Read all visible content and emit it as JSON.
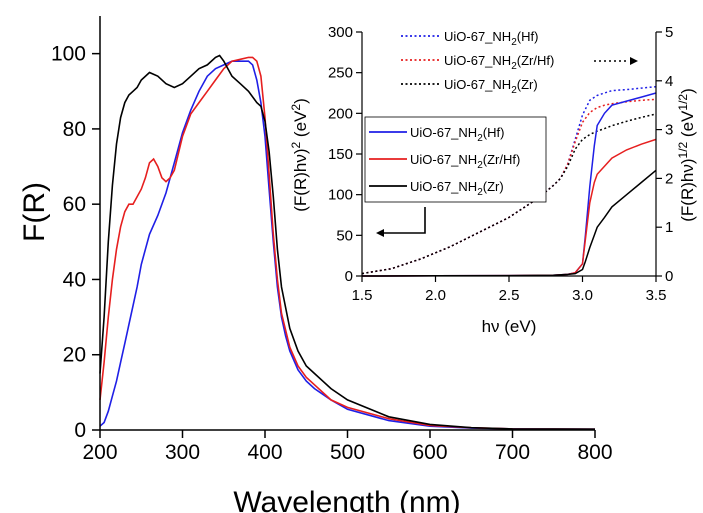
{
  "chart_data": [
    {
      "type": "line",
      "xlabel": "Wavelength (nm)",
      "ylabel": "F(R)",
      "xlim": [
        200,
        800
      ],
      "ylim": [
        0,
        110
      ],
      "xticks": [
        "200",
        "300",
        "400",
        "500",
        "600",
        "700",
        "800"
      ],
      "yticks": [
        "0",
        "20",
        "40",
        "60",
        "80",
        "100"
      ],
      "legend": "inset-left",
      "series": [
        {
          "name": "UiO-67_NH2(Hf)",
          "label_main": "UiO-67_NH",
          "label_sub": "2",
          "label_tail": "(Hf)",
          "color": "#1f1fe6",
          "style": "solid",
          "x": [
            200,
            205,
            210,
            215,
            220,
            225,
            230,
            235,
            240,
            245,
            250,
            255,
            260,
            270,
            280,
            290,
            300,
            310,
            320,
            330,
            340,
            350,
            360,
            370,
            380,
            385,
            390,
            395,
            400,
            405,
            410,
            415,
            420,
            425,
            430,
            440,
            450,
            460,
            480,
            500,
            550,
            600,
            650,
            700,
            800
          ],
          "y": [
            1,
            2,
            5,
            9,
            13,
            18,
            23,
            28,
            33,
            38,
            44,
            48,
            52,
            57,
            63,
            71,
            79,
            85,
            90,
            94,
            96,
            97,
            98,
            98,
            98,
            97,
            93,
            87,
            78,
            64,
            50,
            38,
            30,
            25,
            21,
            16,
            13,
            11,
            8,
            5.5,
            2.5,
            1,
            0.5,
            0.3,
            0.2
          ]
        },
        {
          "name": "UiO-67_NH2(Zr/Hf)",
          "label_main": "UiO-67_NH",
          "label_sub": "2",
          "label_tail": "(Zr/Hf)",
          "color": "#e61f1f",
          "style": "solid",
          "x": [
            200,
            205,
            210,
            215,
            220,
            225,
            230,
            235,
            240,
            245,
            250,
            255,
            260,
            265,
            270,
            275,
            280,
            285,
            290,
            300,
            310,
            320,
            330,
            340,
            350,
            360,
            370,
            380,
            385,
            390,
            395,
            400,
            405,
            410,
            415,
            420,
            430,
            440,
            450,
            460,
            480,
            500,
            550,
            600,
            650,
            700,
            800
          ],
          "y": [
            8,
            18,
            30,
            40,
            48,
            54,
            58,
            60,
            60,
            62,
            64,
            67,
            71,
            72,
            70,
            67,
            66,
            67,
            69,
            78,
            84,
            87,
            90,
            93,
            96,
            98,
            98.5,
            99,
            99,
            98,
            94,
            83,
            68,
            52,
            40,
            31,
            22,
            17,
            14,
            12,
            8,
            6,
            3,
            1.2,
            0.6,
            0.3,
            0.2
          ]
        },
        {
          "name": "UiO-67_NH2(Zr)",
          "label_main": "UiO-67_NH",
          "label_sub": "2",
          "label_tail": "(Zr)",
          "color": "#000000",
          "style": "solid",
          "x": [
            200,
            205,
            210,
            215,
            220,
            225,
            230,
            235,
            240,
            245,
            250,
            260,
            270,
            280,
            290,
            300,
            310,
            320,
            330,
            340,
            345,
            350,
            360,
            370,
            380,
            390,
            395,
            400,
            405,
            410,
            415,
            420,
            430,
            440,
            450,
            460,
            480,
            500,
            550,
            600,
            650,
            700,
            800
          ],
          "y": [
            15,
            30,
            50,
            65,
            76,
            83,
            87,
            89,
            90,
            91,
            93,
            95,
            94,
            92,
            91,
            92,
            94,
            96,
            97,
            99,
            99.5,
            98,
            94,
            92,
            90,
            87,
            86,
            82,
            74,
            62,
            48,
            38,
            27,
            21,
            17,
            15,
            11,
            8,
            3.5,
            1.5,
            0.6,
            0.3,
            0.2
          ]
        }
      ]
    },
    {
      "type": "line",
      "xlabel": "hν (eV)",
      "ylabel_left": "(F(R)hν)2 (eV2)",
      "ylabel_right": "(F(R)hν)1/2 (eV1/2)",
      "xlim": [
        1.5,
        3.5
      ],
      "ylim_left": [
        0,
        300
      ],
      "ylim_right": [
        0,
        5
      ],
      "xticks": [
        "1.5",
        "2.0",
        "2.5",
        "3.0",
        "3.5"
      ],
      "yticks_left": [
        "0",
        "50",
        "100",
        "150",
        "200",
        "250",
        "300"
      ],
      "yticks_right": [
        "0",
        "1",
        "2",
        "3",
        "4",
        "5"
      ],
      "legend": "top-left",
      "series": [
        {
          "name": "UiO-67_NH2(Hf)",
          "label_main": "UiO-67_NH",
          "label_sub": "2",
          "label_tail": "(Hf)",
          "color": "#1f1fe6",
          "style": "dotted",
          "axis": "right",
          "x": [
            1.5,
            1.7,
            1.9,
            2.1,
            2.3,
            2.5,
            2.6,
            2.7,
            2.8,
            2.85,
            2.9,
            2.95,
            3.0,
            3.05,
            3.1,
            3.15,
            3.2,
            3.3,
            3.4,
            3.5
          ],
          "y": [
            0.05,
            0.15,
            0.35,
            0.6,
            0.9,
            1.2,
            1.4,
            1.6,
            1.85,
            2.0,
            2.3,
            2.8,
            3.3,
            3.6,
            3.7,
            3.75,
            3.8,
            3.82,
            3.85,
            3.88
          ]
        },
        {
          "name": "UiO-67_NH2(Zr/Hf)",
          "label_main": "UiO-67_NH",
          "label_sub": "2",
          "label_tail": "(Zr/Hf)",
          "color": "#e61f1f",
          "style": "dotted",
          "axis": "right",
          "x": [
            1.5,
            1.7,
            1.9,
            2.1,
            2.3,
            2.5,
            2.6,
            2.7,
            2.8,
            2.85,
            2.9,
            2.95,
            3.0,
            3.05,
            3.1,
            3.15,
            3.2,
            3.3,
            3.4,
            3.5
          ],
          "y": [
            0.05,
            0.15,
            0.35,
            0.6,
            0.9,
            1.2,
            1.4,
            1.6,
            1.85,
            2.0,
            2.3,
            2.75,
            3.15,
            3.35,
            3.45,
            3.5,
            3.53,
            3.57,
            3.6,
            3.62
          ]
        },
        {
          "name": "UiO-67_NH2(Zr)",
          "label_main": "UiO-67_NH",
          "label_sub": "2",
          "label_tail": "(Zr)",
          "color": "#000000",
          "style": "dotted",
          "axis": "right",
          "x": [
            1.5,
            1.7,
            1.9,
            2.1,
            2.3,
            2.5,
            2.6,
            2.7,
            2.8,
            2.85,
            2.9,
            2.95,
            3.0,
            3.05,
            3.1,
            3.15,
            3.2,
            3.3,
            3.4,
            3.5
          ],
          "y": [
            0.05,
            0.15,
            0.35,
            0.6,
            0.9,
            1.2,
            1.4,
            1.6,
            1.85,
            2.0,
            2.25,
            2.6,
            2.8,
            2.9,
            2.97,
            3.02,
            3.08,
            3.17,
            3.25,
            3.32
          ]
        },
        {
          "name": "UiO-67_NH2(Hf)",
          "label_main": "UiO-67_NH",
          "label_sub": "2",
          "label_tail": "(Hf)",
          "color": "#1f1fe6",
          "style": "solid",
          "axis": "left",
          "x": [
            1.5,
            2.0,
            2.5,
            2.8,
            2.9,
            2.95,
            3.0,
            3.02,
            3.05,
            3.08,
            3.1,
            3.15,
            3.2,
            3.3,
            3.4,
            3.5
          ],
          "y": [
            0,
            0.2,
            0.5,
            1,
            2,
            4,
            15,
            50,
            110,
            160,
            185,
            200,
            210,
            215,
            220,
            225
          ]
        },
        {
          "name": "UiO-67_NH2(Zr/Hf)",
          "label_main": "UiO-67_NH",
          "label_sub": "2",
          "label_tail": "(Zr/Hf)",
          "color": "#e61f1f",
          "style": "solid",
          "axis": "left",
          "x": [
            1.5,
            2.0,
            2.5,
            2.8,
            2.9,
            2.95,
            3.0,
            3.02,
            3.05,
            3.08,
            3.1,
            3.15,
            3.2,
            3.3,
            3.4,
            3.5
          ],
          "y": [
            0,
            0.2,
            0.5,
            1,
            2,
            4,
            15,
            45,
            90,
            115,
            125,
            135,
            145,
            155,
            162,
            168
          ]
        },
        {
          "name": "UiO-67_NH2(Zr)",
          "label_main": "UiO-67_NH",
          "label_sub": "2",
          "label_tail": "(Zr)",
          "color": "#000000",
          "style": "solid",
          "axis": "left",
          "x": [
            1.5,
            2.0,
            2.5,
            2.8,
            2.9,
            2.95,
            3.0,
            3.02,
            3.05,
            3.08,
            3.1,
            3.15,
            3.2,
            3.3,
            3.4,
            3.5
          ],
          "y": [
            0,
            0.2,
            0.5,
            1,
            2,
            3,
            8,
            18,
            35,
            50,
            60,
            72,
            85,
            100,
            115,
            130
          ]
        }
      ]
    }
  ]
}
